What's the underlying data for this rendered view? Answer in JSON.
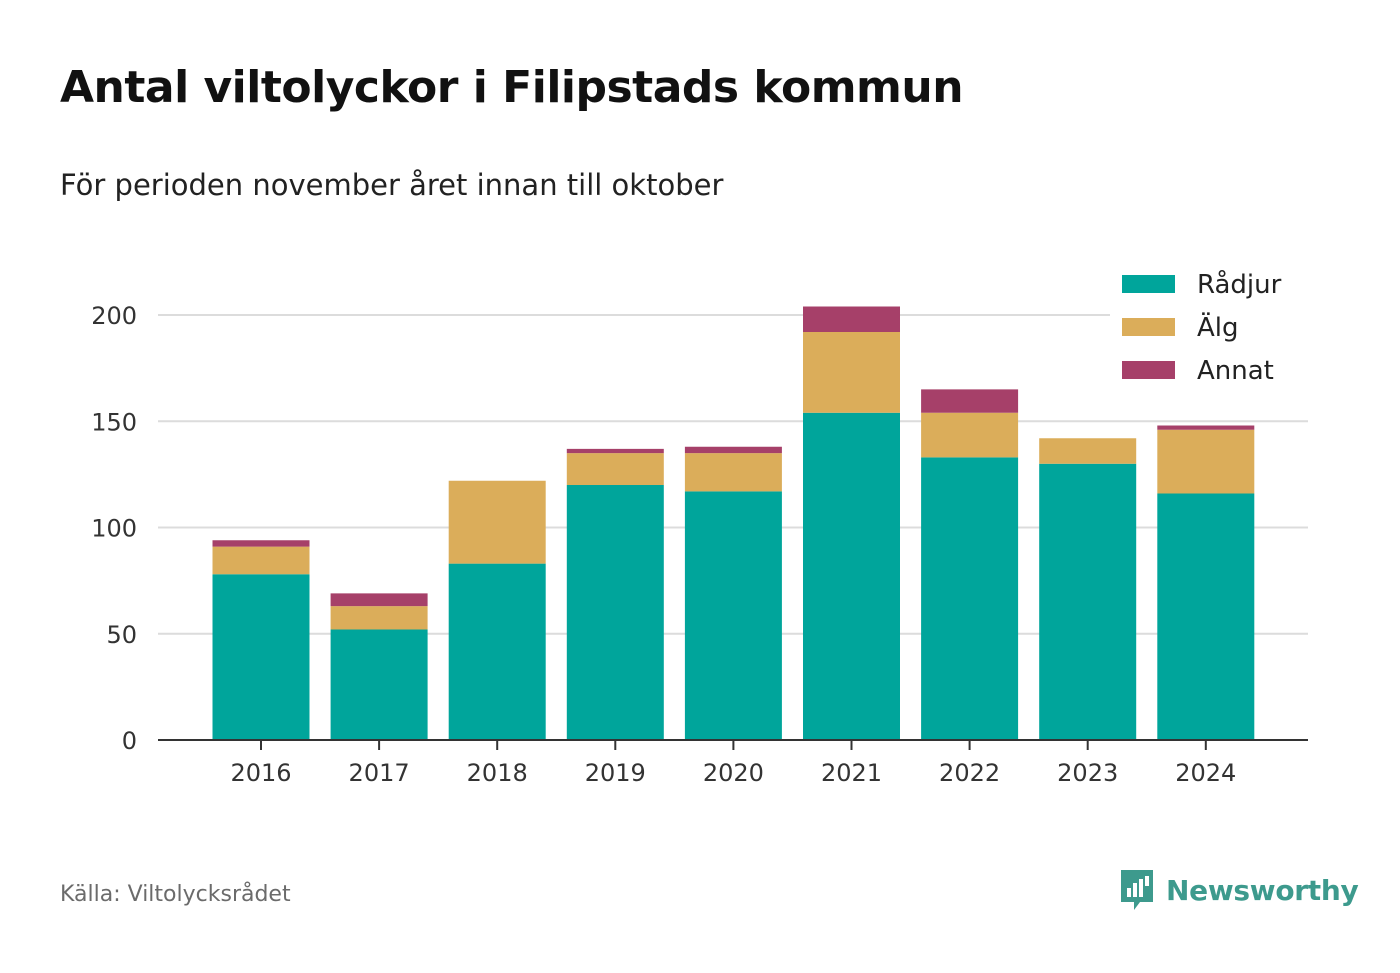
{
  "header": {
    "title": "Antal viltolyckor i Filipstads kommun",
    "subtitle": "För perioden november året innan till oktober"
  },
  "footer": {
    "source": "Källa: Viltolycksrådet",
    "brand": "Newsworthy",
    "brand_icon": "newsworthy-logo-icon"
  },
  "chart_data": {
    "type": "bar",
    "stacked": true,
    "categories": [
      "2016",
      "2017",
      "2018",
      "2019",
      "2020",
      "2021",
      "2022",
      "2023",
      "2024"
    ],
    "series": [
      {
        "name": "Rådjur",
        "color": "#00a59b",
        "values": [
          78,
          52,
          83,
          120,
          117,
          154,
          133,
          130,
          116
        ]
      },
      {
        "name": "Älg",
        "color": "#dbad5a",
        "values": [
          13,
          11,
          39,
          15,
          18,
          38,
          21,
          12,
          30
        ]
      },
      {
        "name": "Annat",
        "color": "#a64069",
        "values": [
          3,
          6,
          0,
          2,
          3,
          12,
          11,
          0,
          2
        ]
      }
    ],
    "y_ticks": [
      0,
      50,
      100,
      150,
      200
    ],
    "ylim": [
      0,
      215
    ],
    "grid": true,
    "legend_position": "top-right"
  }
}
